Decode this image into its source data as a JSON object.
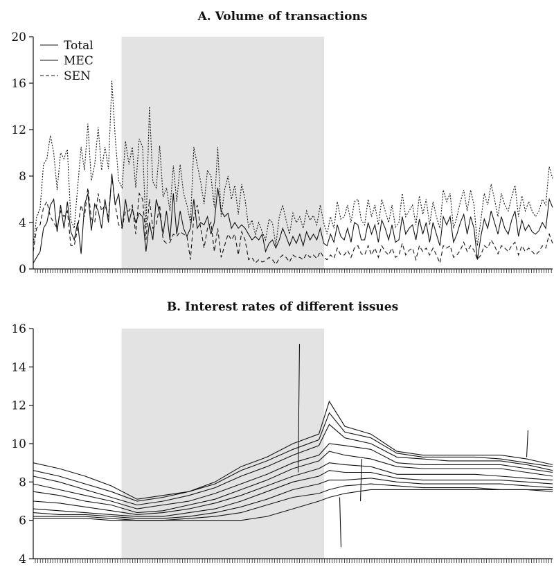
{
  "chart_data": [
    {
      "type": "line",
      "title": "A. Volume of transactions",
      "ylim": [
        0,
        20
      ],
      "yticks": [
        "0",
        "4",
        "8",
        "12",
        "16",
        "20"
      ],
      "shaded_region": [
        0.17,
        0.56
      ],
      "legend": {
        "placement": "top-left",
        "entries": [
          "Total",
          "MEC",
          "SEN"
        ]
      },
      "series": [
        {
          "name": "Total",
          "style": "dotted",
          "values": [
            2.0,
            4.5,
            5.2,
            9.0,
            9.5,
            11.5,
            10.0,
            6.8,
            10.0,
            9.5,
            10.3,
            4.2,
            3.5,
            7.0,
            10.5,
            8.5,
            12.5,
            7.6,
            9.0,
            12.2,
            8.5,
            10.5,
            8.6,
            16.2,
            11.3,
            7.6,
            7.0,
            11.0,
            9.0,
            10.5,
            7.0,
            11.2,
            10.5,
            3.5,
            14.0,
            7.5,
            7.0,
            10.6,
            6.2,
            7.0,
            5.0,
            8.9,
            5.8,
            9.0,
            6.5,
            5.5,
            4.0,
            10.5,
            9.0,
            7.5,
            5.6,
            8.5,
            8.0,
            5.3,
            10.5,
            4.5,
            6.8,
            8.0,
            6.0,
            7.2,
            4.7,
            7.3,
            6.0,
            3.6,
            4.2,
            3.0,
            4.0,
            3.2,
            2.5,
            4.3,
            4.0,
            2.0,
            4.5,
            5.5,
            4.2,
            3.0,
            4.8,
            4.0,
            4.5,
            3.5,
            5.0,
            4.2,
            4.6,
            3.8,
            5.5,
            4.0,
            3.0,
            4.5,
            3.5,
            5.8,
            4.3,
            4.5,
            5.5,
            4.0,
            5.8,
            6.0,
            4.2,
            3.8,
            6.0,
            4.5,
            5.5,
            3.8,
            6.0,
            5.0,
            4.0,
            5.5,
            3.6,
            4.0,
            6.5,
            4.5,
            5.0,
            5.5,
            3.8,
            6.3,
            4.7,
            6.0,
            3.8,
            5.8,
            4.5,
            3.5,
            6.8,
            5.8,
            6.5,
            3.5,
            4.5,
            5.8,
            6.8,
            5.0,
            6.8,
            5.5,
            2.0,
            4.2,
            6.5,
            5.5,
            7.3,
            6.0,
            4.5,
            6.5,
            5.5,
            5.0,
            6.2,
            7.2,
            4.5,
            6.3,
            5.0,
            5.8,
            5.0,
            4.5,
            5.0,
            6.0,
            5.5,
            8.8,
            7.8
          ]
        },
        {
          "name": "MEC",
          "style": "solid",
          "values": [
            0.5,
            1.0,
            1.5,
            3.5,
            4.0,
            5.5,
            6.0,
            3.2,
            5.5,
            3.5,
            5.8,
            3.2,
            2.5,
            4.0,
            1.3,
            5.5,
            6.5,
            3.3,
            5.6,
            5.0,
            3.5,
            6.0,
            4.0,
            8.2,
            5.5,
            6.5,
            3.5,
            6.0,
            4.0,
            5.2,
            4.0,
            4.8,
            4.5,
            1.5,
            4.0,
            2.5,
            6.0,
            4.8,
            3.0,
            5.0,
            2.5,
            6.5,
            3.0,
            5.0,
            3.5,
            2.8,
            3.5,
            6.0,
            3.5,
            4.0,
            3.8,
            4.5,
            3.0,
            4.0,
            7.0,
            5.0,
            4.5,
            4.8,
            3.5,
            4.0,
            3.5,
            3.8,
            3.5,
            3.0,
            2.5,
            2.8,
            2.5,
            3.0,
            1.5,
            2.2,
            2.5,
            1.8,
            2.5,
            3.5,
            2.8,
            2.0,
            2.8,
            2.2,
            3.0,
            2.0,
            3.2,
            2.5,
            3.0,
            2.5,
            3.5,
            2.2,
            2.0,
            3.0,
            2.3,
            3.8,
            2.8,
            2.5,
            3.5,
            2.3,
            4.0,
            3.8,
            2.5,
            2.5,
            4.0,
            3.0,
            3.8,
            2.3,
            4.2,
            3.5,
            2.5,
            3.8,
            2.3,
            2.5,
            4.5,
            3.0,
            3.5,
            3.8,
            2.5,
            4.3,
            3.0,
            4.0,
            2.3,
            4.0,
            3.0,
            2.0,
            4.5,
            3.8,
            4.5,
            2.3,
            3.0,
            4.0,
            4.7,
            3.0,
            4.5,
            3.5,
            0.8,
            2.8,
            4.3,
            3.5,
            5.0,
            4.0,
            3.0,
            4.5,
            3.5,
            3.0,
            4.2,
            5.0,
            2.8,
            4.2,
            3.3,
            3.8,
            3.2,
            3.0,
            3.3,
            4.0,
            3.5,
            6.0,
            5.3
          ]
        },
        {
          "name": "SEN",
          "style": "dashed",
          "values": [
            1.5,
            3.5,
            3.8,
            5.3,
            5.8,
            4.5,
            4.0,
            3.5,
            5.0,
            4.5,
            5.0,
            2.0,
            2.0,
            3.5,
            5.5,
            4.5,
            7.0,
            4.3,
            4.0,
            6.5,
            5.0,
            5.5,
            4.5,
            8.0,
            5.5,
            3.8,
            3.5,
            5.0,
            5.0,
            5.5,
            3.0,
            6.5,
            6.0,
            2.5,
            6.0,
            3.5,
            3.8,
            5.5,
            2.5,
            2.2,
            2.3,
            3.0,
            2.8,
            3.2,
            3.0,
            2.8,
            0.8,
            4.5,
            5.5,
            3.5,
            1.8,
            3.5,
            4.0,
            1.5,
            3.5,
            1.0,
            2.0,
            3.0,
            2.5,
            3.0,
            1.2,
            3.2,
            2.5,
            0.8,
            1.0,
            0.5,
            0.8,
            0.6,
            0.7,
            1.0,
            0.8,
            0.4,
            0.9,
            1.2,
            1.0,
            0.6,
            1.2,
            1.0,
            1.0,
            0.8,
            1.3,
            1.0,
            1.2,
            0.9,
            1.5,
            1.0,
            0.8,
            1.2,
            0.9,
            1.8,
            1.2,
            1.2,
            1.6,
            1.0,
            1.8,
            2.0,
            1.3,
            1.2,
            2.0,
            1.2,
            1.8,
            1.0,
            2.0,
            1.5,
            1.2,
            1.8,
            1.0,
            1.2,
            2.2,
            1.2,
            1.6,
            1.8,
            0.8,
            2.0,
            1.5,
            1.8,
            1.2,
            1.8,
            1.2,
            0.5,
            2.0,
            1.8,
            2.0,
            1.0,
            1.2,
            1.6,
            2.3,
            1.5,
            2.0,
            1.6,
            0.8,
            1.2,
            2.0,
            1.8,
            2.5,
            2.0,
            1.3,
            2.0,
            1.8,
            1.5,
            2.0,
            2.3,
            1.2,
            2.0,
            1.5,
            1.8,
            1.5,
            1.2,
            1.5,
            2.0,
            1.8,
            3.0,
            2.2
          ]
        }
      ]
    },
    {
      "type": "line",
      "title": "B. Interest rates of different issues",
      "ylim": [
        4,
        16
      ],
      "yticks": [
        "4",
        "6",
        "8",
        "10",
        "12",
        "14",
        "16"
      ],
      "shaded_region": [
        0.17,
        0.56
      ],
      "x": [
        0,
        0.05,
        0.1,
        0.15,
        0.2,
        0.25,
        0.3,
        0.35,
        0.4,
        0.45,
        0.5,
        0.55,
        0.57,
        0.6,
        0.65,
        0.7,
        0.75,
        0.8,
        0.85,
        0.9,
        0.95,
        1.0
      ],
      "series": [
        {
          "values": [
            9.0,
            8.7,
            8.3,
            7.8,
            7.1,
            7.3,
            7.5,
            8.0,
            8.8,
            9.3,
            10.0,
            10.5,
            12.2,
            10.9,
            10.5,
            9.6,
            9.4,
            9.4,
            9.4,
            9.4,
            9.2,
            8.9
          ]
        },
        {
          "values": [
            8.6,
            8.3,
            7.9,
            7.5,
            7.0,
            7.2,
            7.5,
            7.9,
            8.6,
            9.1,
            9.7,
            10.2,
            11.6,
            10.6,
            10.3,
            9.5,
            9.3,
            9.3,
            9.3,
            9.2,
            9.0,
            8.8
          ]
        },
        {
          "values": [
            8.3,
            8.0,
            7.6,
            7.2,
            6.8,
            7.0,
            7.3,
            7.7,
            8.3,
            8.8,
            9.4,
            9.9,
            11.0,
            10.3,
            10.0,
            9.3,
            9.2,
            9.1,
            9.1,
            9.1,
            8.9,
            8.6
          ]
        },
        {
          "values": [
            7.9,
            7.6,
            7.3,
            7.0,
            6.6,
            6.8,
            7.0,
            7.4,
            7.9,
            8.4,
            9.0,
            9.4,
            10.0,
            9.9,
            9.7,
            9.0,
            8.9,
            8.9,
            8.9,
            8.9,
            8.7,
            8.5
          ]
        },
        {
          "values": [
            7.5,
            7.3,
            7.0,
            6.8,
            6.4,
            6.5,
            6.8,
            7.1,
            7.6,
            8.1,
            8.7,
            9.1,
            9.6,
            9.4,
            9.2,
            8.8,
            8.7,
            8.7,
            8.7,
            8.7,
            8.5,
            8.3
          ]
        },
        {
          "values": [
            7.0,
            6.9,
            6.7,
            6.5,
            6.3,
            6.4,
            6.6,
            6.9,
            7.3,
            7.8,
            8.3,
            8.7,
            9.0,
            8.9,
            8.8,
            8.4,
            8.4,
            8.4,
            8.4,
            8.3,
            8.2,
            8.1
          ]
        },
        {
          "values": [
            6.6,
            6.5,
            6.4,
            6.3,
            6.2,
            6.2,
            6.4,
            6.6,
            7.0,
            7.5,
            8.0,
            8.3,
            8.6,
            8.5,
            8.5,
            8.2,
            8.1,
            8.1,
            8.1,
            8.1,
            8.0,
            7.9
          ]
        },
        {
          "values": [
            6.4,
            6.3,
            6.3,
            6.2,
            6.1,
            6.1,
            6.2,
            6.4,
            6.7,
            7.1,
            7.6,
            7.9,
            8.1,
            8.1,
            8.2,
            8.0,
            7.9,
            7.9,
            7.9,
            7.9,
            7.8,
            7.7
          ]
        },
        {
          "values": [
            6.2,
            6.2,
            6.2,
            6.1,
            6.0,
            6.0,
            6.1,
            6.2,
            6.4,
            6.8,
            7.2,
            7.4,
            7.6,
            7.8,
            7.9,
            7.8,
            7.7,
            7.7,
            7.7,
            7.6,
            7.6,
            7.5
          ]
        },
        {
          "values": [
            6.1,
            6.1,
            6.1,
            6.0,
            6.0,
            6.0,
            6.0,
            6.0,
            6.0,
            6.2,
            6.6,
            7.0,
            7.2,
            7.4,
            7.6,
            7.6,
            7.6,
            7.6,
            7.6,
            7.6,
            7.6,
            7.6
          ]
        }
      ],
      "spikes": [
        {
          "x": 0.51,
          "from": 8.5,
          "to": 15.2
        },
        {
          "x": 0.59,
          "from": 7.2,
          "to": 4.6
        },
        {
          "x": 0.63,
          "from": 7.0,
          "to": 9.2
        },
        {
          "x": 0.95,
          "from": 9.3,
          "to": 10.7
        }
      ]
    }
  ]
}
